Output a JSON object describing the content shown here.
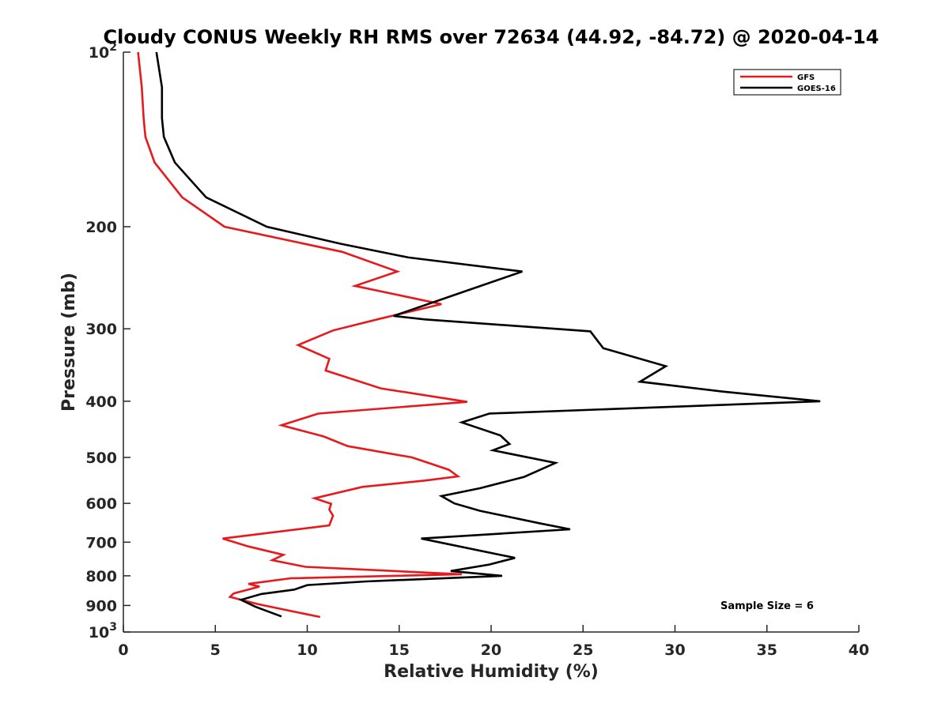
{
  "chart_data": {
    "type": "line",
    "title": "Cloudy CONUS Weekly RH RMS over 72634 (44.92, -84.72) @ 2020-04-14",
    "xlabel": "Relative Humidity (%)",
    "ylabel": "Pressure (mb)",
    "xlim": [
      0,
      40
    ],
    "ylim": [
      100,
      1000
    ],
    "y_scale": "log",
    "y_reversed": true,
    "x_ticks": [
      0,
      5,
      10,
      15,
      20,
      25,
      30,
      35,
      40
    ],
    "y_ticks": [
      {
        "value": 100,
        "label": "10",
        "sup": "2"
      },
      {
        "value": 200,
        "label": "200",
        "sup": ""
      },
      {
        "value": 300,
        "label": "300",
        "sup": ""
      },
      {
        "value": 400,
        "label": "400",
        "sup": ""
      },
      {
        "value": 500,
        "label": "500",
        "sup": ""
      },
      {
        "value": 600,
        "label": "600",
        "sup": ""
      },
      {
        "value": 700,
        "label": "700",
        "sup": ""
      },
      {
        "value": 800,
        "label": "800",
        "sup": ""
      },
      {
        "value": 900,
        "label": "900",
        "sup": ""
      },
      {
        "value": 1000,
        "label": "10",
        "sup": "3"
      }
    ],
    "grid": false,
    "legend_position": "top-right",
    "annotation": "Sample Size = 6",
    "series": [
      {
        "name": "GFS",
        "color": "#e8191c",
        "points": [
          [
            0.8,
            100
          ],
          [
            1.0,
            115
          ],
          [
            1.1,
            130
          ],
          [
            1.2,
            140
          ],
          [
            1.7,
            155
          ],
          [
            3.2,
            178
          ],
          [
            5.5,
            200
          ],
          [
            11.9,
            221
          ],
          [
            14.9,
            239
          ],
          [
            12.6,
            253
          ],
          [
            17.3,
            272
          ],
          [
            14.0,
            288
          ],
          [
            11.4,
            302
          ],
          [
            9.5,
            320
          ],
          [
            11.2,
            338
          ],
          [
            11.0,
            354
          ],
          [
            14.0,
            380
          ],
          [
            18.7,
            401
          ],
          [
            10.6,
            420
          ],
          [
            8.6,
            440
          ],
          [
            10.9,
            460
          ],
          [
            12.2,
            478
          ],
          [
            15.7,
            500
          ],
          [
            17.7,
            525
          ],
          [
            18.2,
            539
          ],
          [
            16.4,
            548
          ],
          [
            13.0,
            562
          ],
          [
            10.4,
            588
          ],
          [
            11.3,
            601
          ],
          [
            11.2,
            615
          ],
          [
            11.4,
            630
          ],
          [
            11.2,
            655
          ],
          [
            5.4,
            690
          ],
          [
            6.8,
            712
          ],
          [
            8.7,
            736
          ],
          [
            8.1,
            752
          ],
          [
            9.9,
            772
          ],
          [
            18.4,
            795
          ],
          [
            9.1,
            808
          ],
          [
            6.8,
            826
          ],
          [
            7.4,
            835
          ],
          [
            6.0,
            858
          ],
          [
            5.8,
            870
          ],
          [
            7.3,
            895
          ],
          [
            9.1,
            920
          ],
          [
            10.7,
            942
          ]
        ]
      },
      {
        "name": "GOES-16",
        "color": "#000000",
        "points": [
          [
            1.8,
            100
          ],
          [
            2.1,
            115
          ],
          [
            2.1,
            130
          ],
          [
            2.2,
            140
          ],
          [
            2.8,
            155
          ],
          [
            4.5,
            178
          ],
          [
            7.8,
            200
          ],
          [
            11.8,
            214
          ],
          [
            15.5,
            226
          ],
          [
            21.7,
            239
          ],
          [
            18.5,
            259
          ],
          [
            14.7,
            285
          ],
          [
            16.4,
            289
          ],
          [
            25.4,
            303
          ],
          [
            26.1,
            324
          ],
          [
            29.5,
            348
          ],
          [
            28.1,
            370
          ],
          [
            32.6,
            385
          ],
          [
            37.9,
            400
          ],
          [
            19.9,
            420
          ],
          [
            18.4,
            435
          ],
          [
            20.5,
            458
          ],
          [
            21.0,
            474
          ],
          [
            20.1,
            486
          ],
          [
            23.5,
            511
          ],
          [
            21.8,
            540
          ],
          [
            19.4,
            565
          ],
          [
            17.3,
            583
          ],
          [
            18.0,
            600
          ],
          [
            19.4,
            618
          ],
          [
            22.7,
            650
          ],
          [
            24.3,
            665
          ],
          [
            16.2,
            690
          ],
          [
            21.3,
            745
          ],
          [
            19.9,
            765
          ],
          [
            17.8,
            785
          ],
          [
            20.6,
            800
          ],
          [
            13.2,
            818
          ],
          [
            10.0,
            830
          ],
          [
            9.3,
            845
          ],
          [
            7.5,
            860
          ],
          [
            6.4,
            880
          ],
          [
            7.2,
            905
          ],
          [
            8.6,
            940
          ]
        ]
      }
    ]
  }
}
